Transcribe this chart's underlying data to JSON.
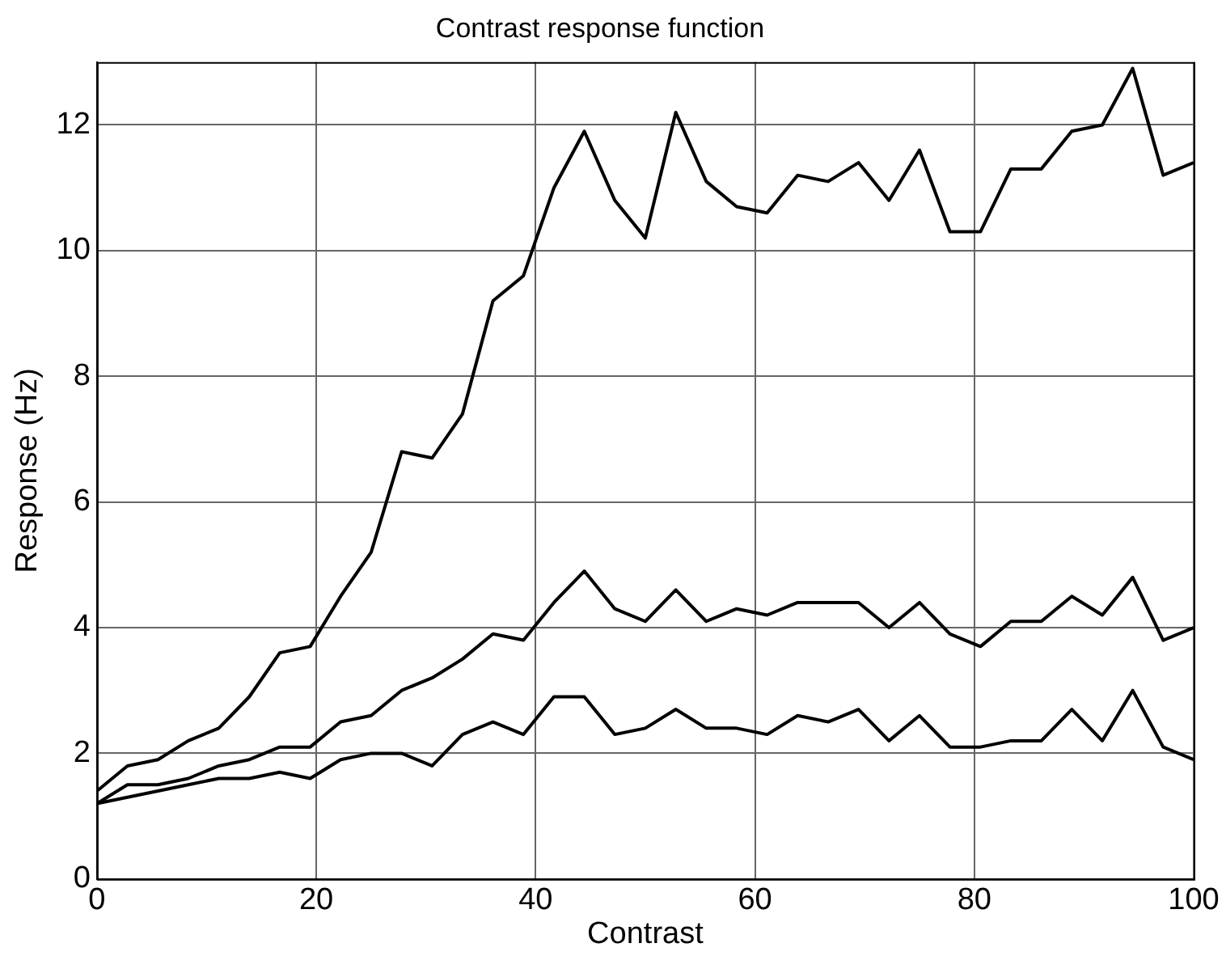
{
  "chart_data": {
    "type": "line",
    "title": "Contrast response function",
    "xlabel": "Contrast",
    "ylabel": "Response (Hz)",
    "x": [
      0,
      2.78,
      5.56,
      8.33,
      11.11,
      13.89,
      16.67,
      19.44,
      22.22,
      25,
      27.78,
      30.56,
      33.33,
      36.11,
      38.89,
      41.67,
      44.44,
      47.22,
      50,
      52.78,
      55.56,
      58.33,
      61.11,
      63.89,
      66.67,
      69.44,
      72.22,
      75,
      77.78,
      80.56,
      83.33,
      86.11,
      88.89,
      91.67,
      94.44,
      97.22,
      100
    ],
    "series": [
      {
        "color": "#000000",
        "values": [
          1.4,
          1.8,
          1.9,
          2.2,
          2.4,
          2.9,
          3.6,
          3.7,
          4.5,
          5.2,
          6.8,
          6.7,
          7.4,
          9.2,
          9.6,
          11.0,
          11.9,
          10.8,
          10.2,
          12.2,
          11.1,
          10.7,
          10.6,
          11.2,
          11.1,
          11.4,
          10.8,
          11.6,
          10.3,
          10.3,
          11.3,
          11.3,
          11.9,
          12.0,
          12.9,
          11.2,
          11.4
        ]
      },
      {
        "color": "#000000",
        "values": [
          1.2,
          1.5,
          1.5,
          1.6,
          1.8,
          1.9,
          2.1,
          2.1,
          2.5,
          2.6,
          3.0,
          3.2,
          3.5,
          3.9,
          3.8,
          4.4,
          4.9,
          4.3,
          4.1,
          4.6,
          4.1,
          4.3,
          4.2,
          4.4,
          4.4,
          4.4,
          4.0,
          4.4,
          3.9,
          3.7,
          4.1,
          4.1,
          4.5,
          4.2,
          4.8,
          3.8,
          4.0
        ]
      },
      {
        "color": "#000000",
        "values": [
          1.2,
          1.3,
          1.4,
          1.5,
          1.6,
          1.6,
          1.7,
          1.6,
          1.9,
          2.0,
          2.0,
          1.8,
          2.3,
          2.5,
          2.3,
          2.9,
          2.9,
          2.3,
          2.4,
          2.7,
          2.4,
          2.4,
          2.3,
          2.6,
          2.5,
          2.7,
          2.2,
          2.6,
          2.1,
          2.1,
          2.2,
          2.2,
          2.7,
          2.2,
          3.0,
          2.1,
          1.9
        ]
      }
    ],
    "xlim": [
      0,
      100
    ],
    "xticks": [
      0,
      20,
      40,
      60,
      80,
      100
    ],
    "ylim": [
      0,
      13
    ],
    "yticks": [
      0,
      2,
      4,
      6,
      8,
      10,
      12
    ],
    "grid": true,
    "line_style": "solid",
    "marker": "none",
    "legend": false
  }
}
